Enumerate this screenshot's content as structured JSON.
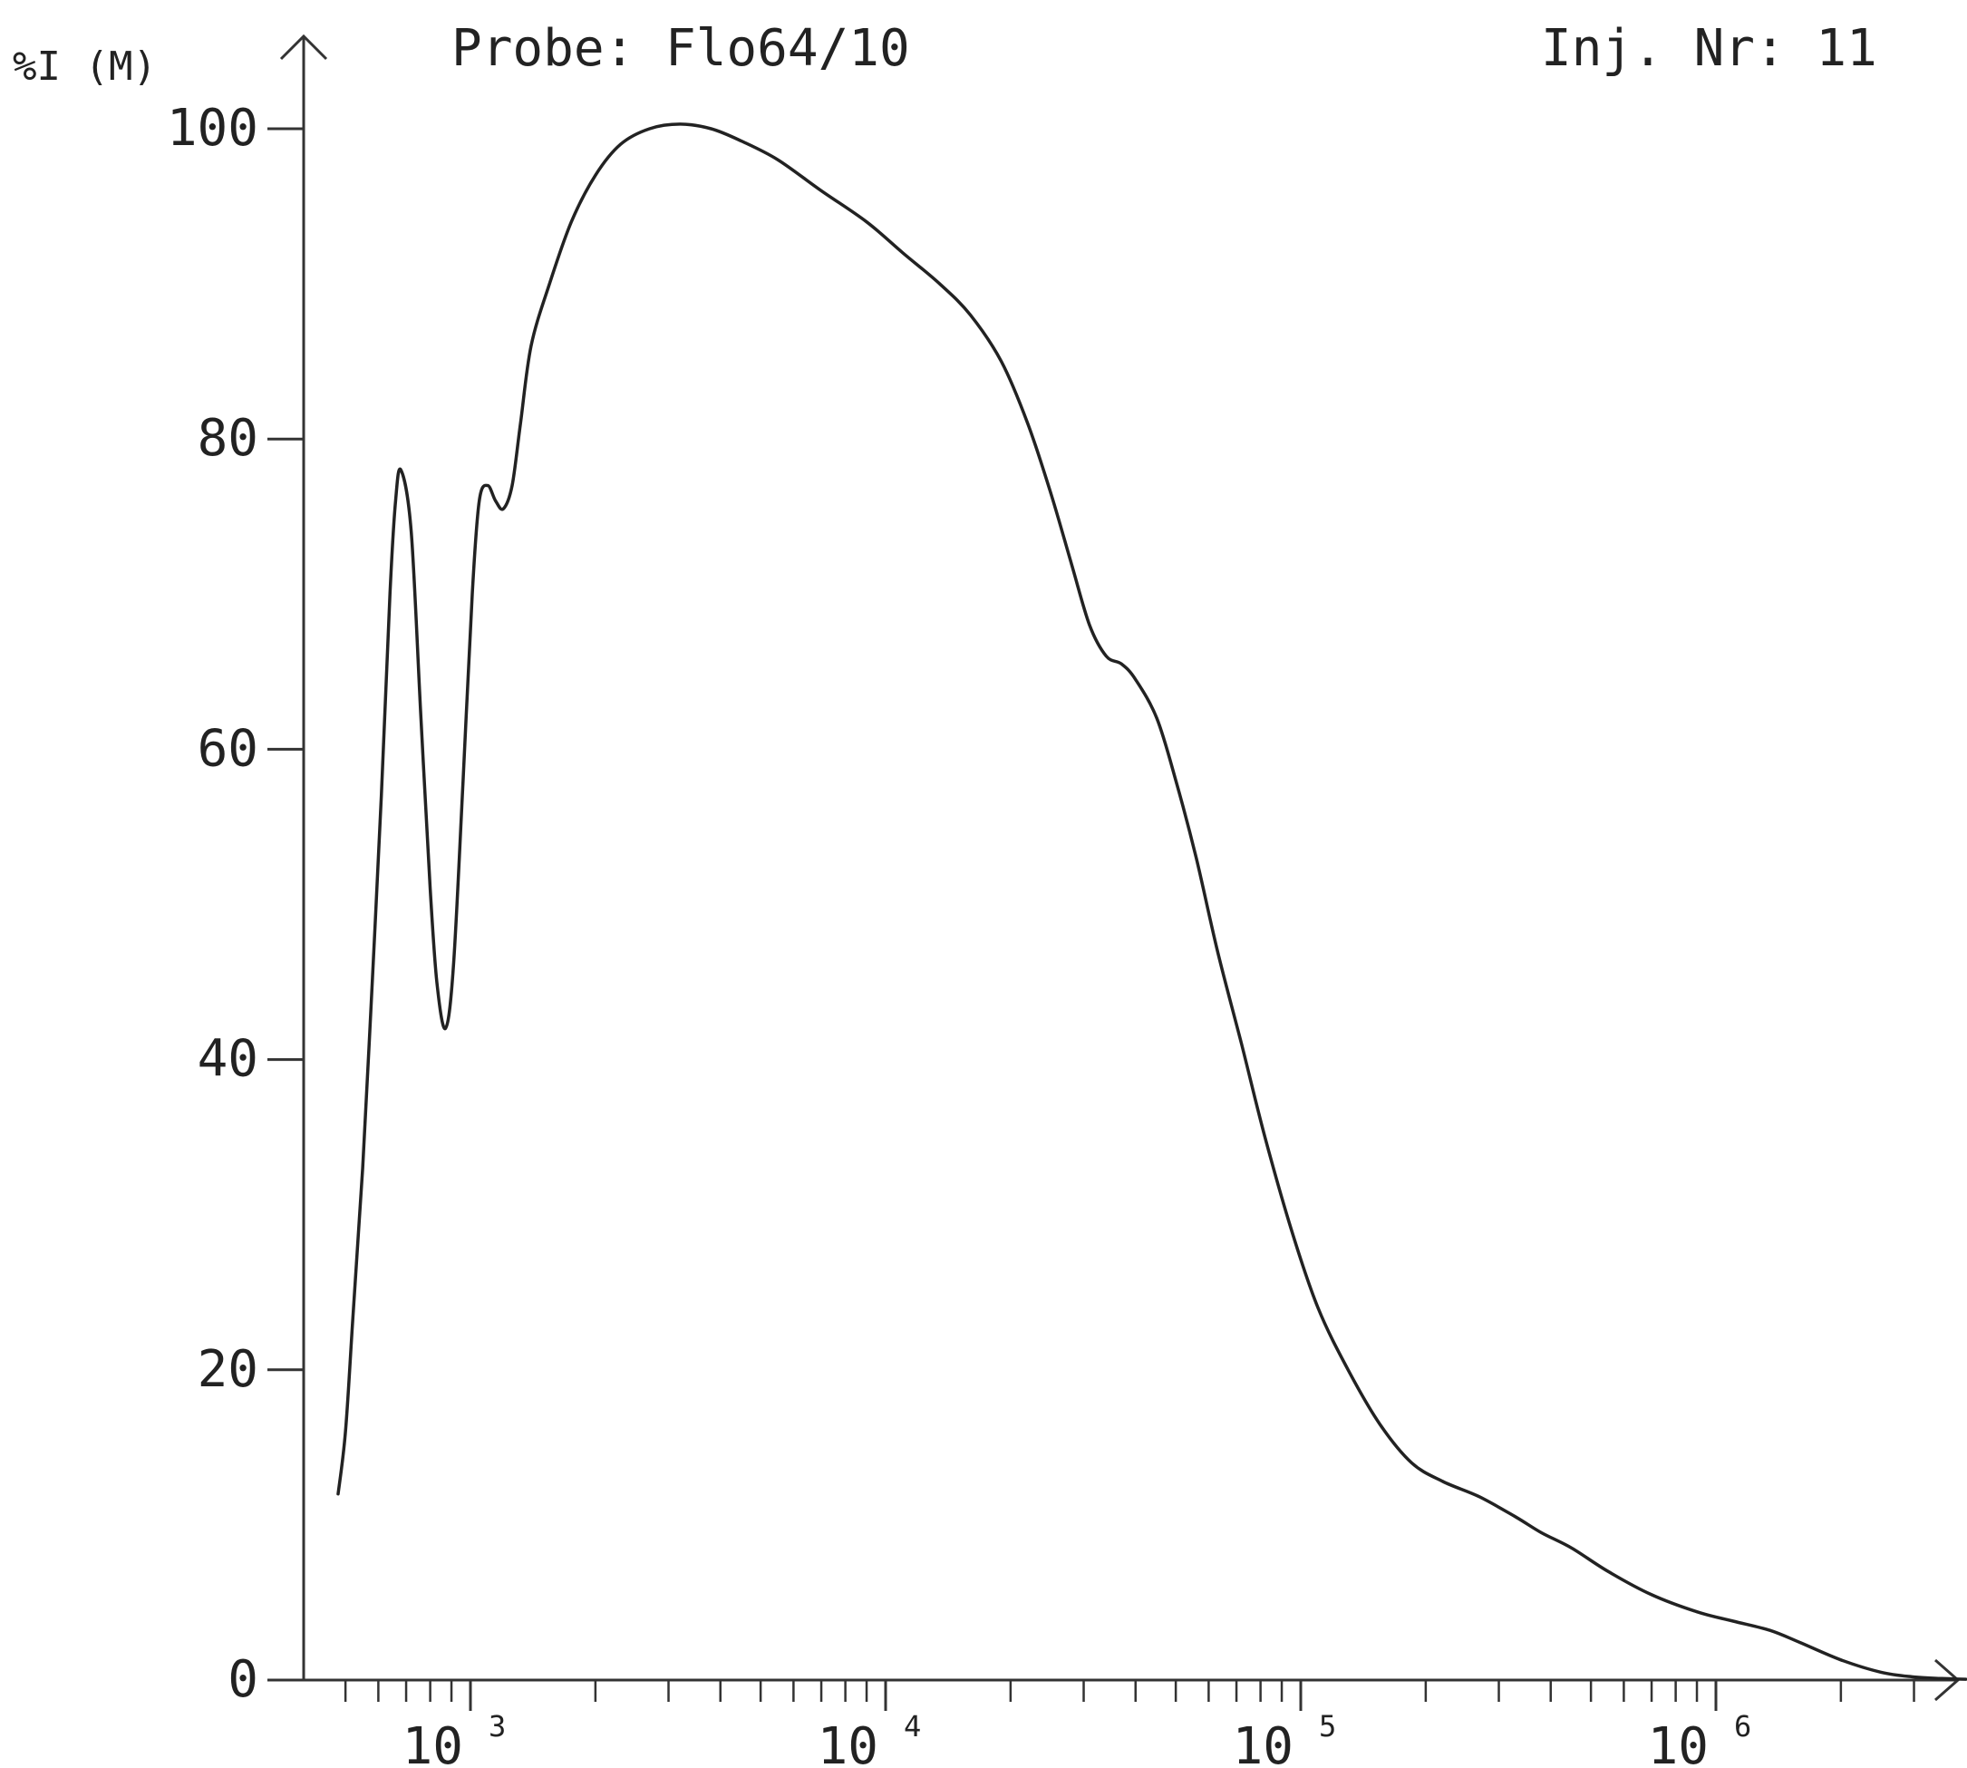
{
  "header": {
    "ylabel": "%I (M)",
    "probe": "Probe: Flo64/10",
    "injection": "Inj. Nr: 11"
  },
  "chart_data": {
    "type": "line",
    "title": "",
    "xlabel": "",
    "ylabel": "%I (M)",
    "x_scale": "log",
    "xlim": [
      450,
      4500000
    ],
    "ylim": [
      0,
      100
    ],
    "grid": false,
    "y_ticks": [
      {
        "value": 0,
        "label": "0"
      },
      {
        "value": 20,
        "label": "20"
      },
      {
        "value": 40,
        "label": "40"
      },
      {
        "value": 60,
        "label": "60"
      },
      {
        "value": 80,
        "label": "80"
      },
      {
        "value": 100,
        "label": "100"
      }
    ],
    "x_ticks": [
      {
        "value": 1000,
        "base": "10",
        "exp": "3"
      },
      {
        "value": 10000,
        "base": "10",
        "exp": "4"
      },
      {
        "value": 100000,
        "base": "10",
        "exp": "5"
      },
      {
        "value": 1000000,
        "base": "10",
        "exp": "6"
      }
    ],
    "series": [
      {
        "color": "#222222",
        "x": [
          480,
          500,
          520,
          550,
          580,
          610,
          640,
          660,
          680,
          720,
          760,
          800,
          830,
          870,
          910,
          960,
          1010,
          1050,
          1100,
          1150,
          1200,
          1260,
          1320,
          1400,
          1550,
          1750,
          2000,
          2300,
          2700,
          3200,
          3800,
          4500,
          5500,
          7000,
          9000,
          11000,
          13500,
          16000,
          19000,
          22000,
          25000,
          28000,
          31000,
          34000,
          37000,
          40000,
          45000,
          50000,
          56000,
          63000,
          72000,
          82000,
          95000,
          110000,
          130000,
          155000,
          185000,
          220000,
          270000,
          330000,
          380000,
          450000,
          550000,
          700000,
          900000,
          1100000,
          1350000,
          1600000,
          2000000,
          2500000,
          3000000,
          3500000,
          4000000
        ],
        "y": [
          12,
          16,
          23,
          33,
          45,
          57,
          70,
          76,
          78,
          74,
          62,
          51,
          45,
          42,
          46,
          58,
          70,
          76,
          77,
          76,
          75.5,
          77,
          81,
          86,
          90,
          94,
          97,
          99,
          100,
          100.3,
          100,
          99.2,
          98,
          96,
          94,
          92,
          90,
          88,
          85,
          81,
          76.5,
          72,
          68,
          66,
          65.5,
          64.5,
          62,
          58,
          53,
          47,
          41,
          35,
          29,
          24,
          20,
          16.5,
          14,
          12.8,
          11.8,
          10.5,
          9.5,
          8.5,
          7,
          5.5,
          4.4,
          3.8,
          3.2,
          2.4,
          1.3,
          0.5,
          0.2,
          0.1,
          0.05
        ]
      }
    ]
  }
}
